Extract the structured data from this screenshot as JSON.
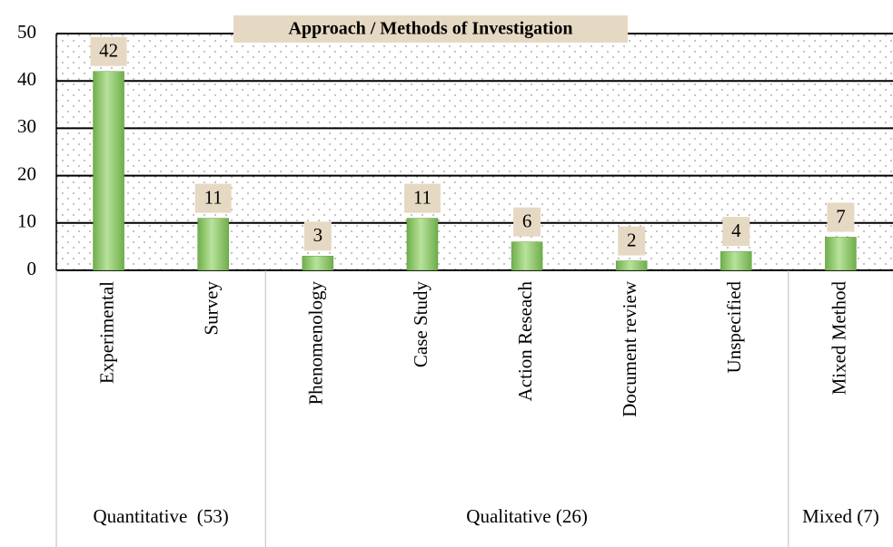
{
  "chart_data": {
    "type": "bar",
    "title": "Approach / Methods of Investigation",
    "categories": [
      "Experimental",
      "Survey",
      "Phenomenology",
      "Case Study",
      "Action Reseach",
      "Document review",
      "Unspecified",
      "Mixed Method"
    ],
    "values": [
      42,
      11,
      3,
      11,
      6,
      2,
      4,
      7
    ],
    "groups": [
      "Quantitative  (53)",
      "Qualitative (26)",
      "Mixed (7)"
    ],
    "color": "#8cc66a",
    "ylim": [
      0,
      50
    ],
    "yticks": [
      0,
      10,
      20,
      30,
      40,
      50
    ],
    "grid": true
  }
}
